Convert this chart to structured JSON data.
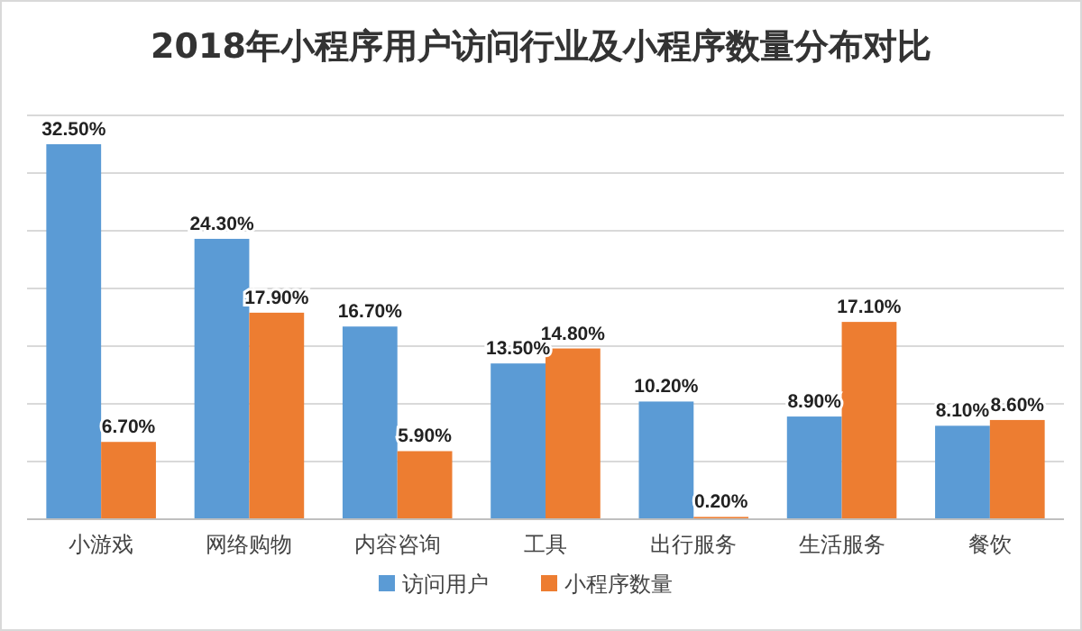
{
  "chart_data": {
    "type": "bar",
    "title": "2018年小程序用户访问行业及小程序数量分布对比",
    "categories": [
      "小游戏",
      "网络购物",
      "内容咨询",
      "工具",
      "出行服务",
      "生活服务",
      "餐饮"
    ],
    "series": [
      {
        "name": "访问用户",
        "color": "#5b9bd5",
        "values": [
          32.5,
          24.3,
          16.7,
          13.5,
          10.2,
          8.9,
          8.1
        ],
        "value_labels": [
          "32.50%",
          "24.30%",
          "16.70%",
          "13.50%",
          "10.20%",
          "8.90%",
          "8.10%"
        ]
      },
      {
        "name": "小程序数量",
        "color": "#ed7d31",
        "values": [
          6.7,
          17.9,
          5.9,
          14.8,
          0.2,
          17.1,
          8.6
        ],
        "value_labels": [
          "6.70%",
          "17.90%",
          "5.90%",
          "14.80%",
          "0.20%",
          "17.10%",
          "8.60%"
        ]
      }
    ],
    "ylim": [
      0,
      35
    ],
    "yticks": [
      {
        "value": 0,
        "label": null
      },
      {
        "value": 5,
        "label": null
      },
      {
        "value": 10,
        "label": null
      },
      {
        "value": 15,
        "label": null
      },
      {
        "value": 20,
        "label": null
      },
      {
        "value": 25,
        "label": null
      },
      {
        "value": 30,
        "label": null
      },
      {
        "value": 35,
        "label": null
      }
    ],
    "tick_labels": "x",
    "grid": "y",
    "legend": "bottom"
  }
}
